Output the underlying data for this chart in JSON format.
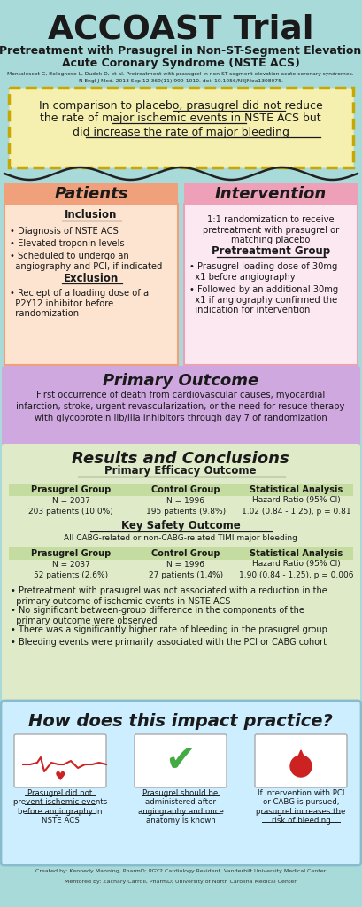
{
  "title": "ACCOAST Trial",
  "subtitle1": "Pretreatment with Prasugrel in Non-ST-Segment Elevation",
  "subtitle2": "Acute Coronary Syndrome (NSTE ACS)",
  "citation1": "Montalescot G, Bolognese L, Dudek D, et al. Pretreatment with prasugrel in non-ST-segment elevation acute coronary syndromes.",
  "citation2": "N Engl J Med. 2013 Sep 12;369(11):999-1010. doi: 10.1056/NEJMoa1308075.",
  "bg_color": "#a8dada",
  "summary_bg": "#f5f0b0",
  "summary_border": "#c8a800",
  "patients_header_bg": "#f0a07a",
  "patients_body_bg": "#fce4d0",
  "intervention_header_bg": "#eda0b8",
  "intervention_body_bg": "#fce8f0",
  "primary_bg": "#d0a8e0",
  "results_bg": "#deeac8",
  "impact_bg": "#cceeff",
  "patients_title": "Patients",
  "intervention_title": "Intervention",
  "primary_title": "Primary Outcome",
  "results_title": "Results and Conclusions",
  "efficacy_title": "Primary Efficacy Outcome",
  "safety_title": "Key Safety Outcome",
  "safety_subtitle": "All CABG-related or non-CABG-related TIMI major bleeding",
  "stat1_val": "1.02 (0.84 - 1.25), p = 0.81",
  "stat2_val": "1.90 (0.84 - 1.25), p = 0.006",
  "conclusions": [
    "Pretreatment with prasugrel was not associated with a reduction in the\n  primary outcome of ischemic events in NSTE ACS",
    "No significant between-group difference in the components of the\n  primary outcome were observed",
    "There was a significantly higher rate of bleeding in the prasugrel group",
    "Bleeding events were primarily associated with the PCI or CABG cohort"
  ],
  "impact_title": "How does this impact practice?",
  "impact1": "Prasugrel did not\nprevent ischemic events\nbefore angiography in\nNSTE ACS",
  "impact2": "Prasugrel should be\nadministered after\nangiography and once\nanatomy is known",
  "impact3": "If intervention with PCI\nor CABG is pursued,\nprasugrel increases the\nrisk of bleeding",
  "footer1": "Created by: Kennedy Manning, PharmD; PGY2 Cardiology Resident, Vanderbilt University Medical Center",
  "footer2": "Mentored by: Zachary Carroll, PharmD; University of North Carolina Medical Center"
}
